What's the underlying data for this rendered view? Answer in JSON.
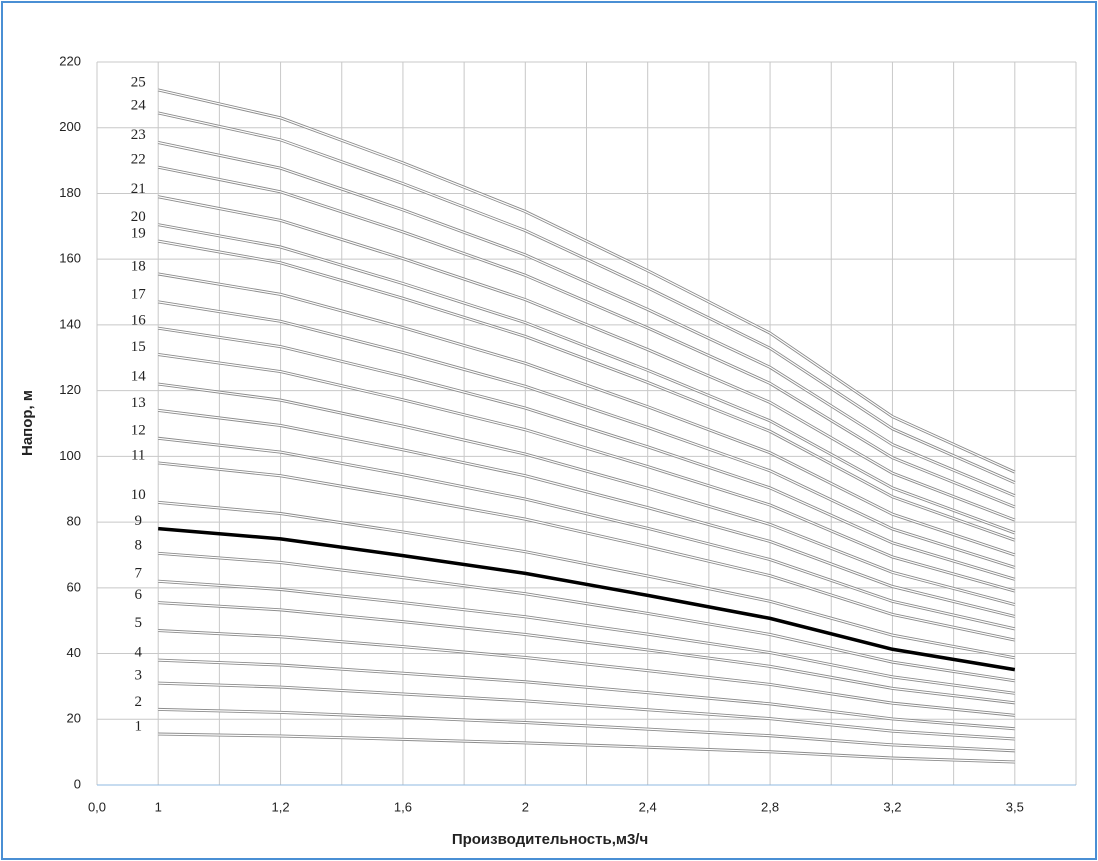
{
  "chart_data": {
    "type": "line",
    "x_label": "Производительность,м3/ч",
    "y_label": "Напор, м",
    "categories": [
      "0,0",
      "1",
      "1,2",
      "1,6",
      "2",
      "2,4",
      "2,8",
      "3,2",
      "3,5"
    ],
    "ylim": [
      0,
      220
    ],
    "yticks": [
      0,
      20,
      40,
      60,
      80,
      100,
      120,
      140,
      160,
      180,
      200,
      220
    ],
    "grid": true,
    "series": [
      {
        "name": "1",
        "color": "#8c8c8c",
        "values": [
          null,
          15.5,
          14.9,
          13.9,
          12.8,
          11.5,
          10.1,
          8.2,
          7.0
        ]
      },
      {
        "name": "2",
        "color": "#8c8c8c",
        "values": [
          null,
          23,
          22.1,
          20.6,
          19.0,
          17.0,
          15.0,
          12.2,
          10.4
        ]
      },
      {
        "name": "3",
        "color": "#8c8c8c",
        "values": [
          null,
          31,
          29.8,
          27.7,
          25.6,
          22.9,
          20.2,
          16.4,
          14.0
        ]
      },
      {
        "name": "4",
        "color": "#8c8c8c",
        "values": [
          null,
          38,
          36.5,
          34.0,
          31.4,
          28.1,
          24.7,
          20.1,
          17.1
        ]
      },
      {
        "name": "5",
        "color": "#8c8c8c",
        "values": [
          null,
          47,
          45.1,
          42.1,
          38.8,
          34.8,
          30.6,
          24.9,
          21.2
        ]
      },
      {
        "name": "6",
        "color": "#8c8c8c",
        "values": [
          null,
          55.5,
          53.3,
          49.7,
          45.8,
          41.1,
          36.1,
          29.4,
          25.0
        ]
      },
      {
        "name": "7",
        "color": "#8c8c8c",
        "values": [
          null,
          62,
          59.5,
          55.5,
          51.2,
          45.9,
          40.3,
          32.9,
          27.9
        ]
      },
      {
        "name": "8",
        "color": "#8c8c8c",
        "values": [
          null,
          70.5,
          67.7,
          63.1,
          58.2,
          52.2,
          45.8,
          37.4,
          31.7
        ]
      },
      {
        "name": "9",
        "color": "#000000",
        "values": [
          null,
          78,
          74.9,
          69.8,
          64.4,
          57.7,
          50.7,
          41.3,
          35.1
        ]
      },
      {
        "name": "10",
        "color": "#8c8c8c",
        "values": [
          null,
          86,
          82.6,
          77.0,
          71.0,
          63.6,
          55.9,
          45.6,
          38.7
        ]
      },
      {
        "name": "11",
        "color": "#8c8c8c",
        "values": [
          null,
          98,
          94.1,
          87.7,
          80.9,
          72.5,
          63.7,
          51.9,
          44.1
        ]
      },
      {
        "name": "12",
        "color": "#8c8c8c",
        "values": [
          null,
          105.5,
          101.3,
          94.4,
          87.0,
          78.1,
          68.6,
          55.9,
          47.5
        ]
      },
      {
        "name": "13",
        "color": "#8c8c8c",
        "values": [
          null,
          114,
          109.4,
          102.0,
          94.1,
          84.4,
          74.1,
          60.4,
          51.3
        ]
      },
      {
        "name": "14",
        "color": "#8c8c8c",
        "values": [
          null,
          122,
          117.1,
          109.2,
          100.7,
          90.3,
          79.3,
          64.7,
          54.9
        ]
      },
      {
        "name": "15",
        "color": "#8c8c8c",
        "values": [
          null,
          131,
          125.8,
          117.2,
          108.1,
          96.9,
          85.2,
          69.4,
          59.0
        ]
      },
      {
        "name": "16",
        "color": "#8c8c8c",
        "values": [
          null,
          139,
          133.4,
          124.4,
          114.7,
          102.9,
          90.4,
          73.7,
          62.6
        ]
      },
      {
        "name": "17",
        "color": "#8c8c8c",
        "values": [
          null,
          147,
          141.1,
          131.6,
          121.3,
          108.8,
          95.6,
          77.9,
          66.2
        ]
      },
      {
        "name": "18",
        "color": "#8c8c8c",
        "values": [
          null,
          155.5,
          149.3,
          139.2,
          128.3,
          115.1,
          101.1,
          82.4,
          70.0
        ]
      },
      {
        "name": "19",
        "color": "#8c8c8c",
        "values": [
          null,
          165.5,
          158.9,
          148.1,
          136.5,
          122.5,
          107.6,
          87.7,
          74.5
        ]
      },
      {
        "name": "20",
        "color": "#8c8c8c",
        "values": [
          null,
          170.5,
          163.7,
          152.6,
          140.7,
          126.2,
          110.8,
          90.4,
          76.7
        ]
      },
      {
        "name": "21",
        "color": "#8c8c8c",
        "values": [
          null,
          179,
          171.8,
          160.2,
          147.7,
          132.5,
          116.4,
          94.9,
          80.6
        ]
      },
      {
        "name": "22",
        "color": "#8c8c8c",
        "values": [
          null,
          188,
          180.5,
          168.3,
          155.1,
          139.1,
          122.2,
          99.6,
          84.6
        ]
      },
      {
        "name": "23",
        "color": "#8c8c8c",
        "values": [
          null,
          195.5,
          187.7,
          175.0,
          161.3,
          144.7,
          127.1,
          103.6,
          88.0
        ]
      },
      {
        "name": "24",
        "color": "#8c8c8c",
        "values": [
          null,
          204.5,
          196.3,
          183.0,
          168.7,
          151.3,
          132.9,
          108.4,
          92.0
        ]
      },
      {
        "name": "25",
        "color": "#8c8c8c",
        "values": [
          null,
          211.5,
          203.0,
          189.3,
          174.5,
          156.5,
          137.5,
          112.1,
          95.2
        ]
      }
    ]
  }
}
